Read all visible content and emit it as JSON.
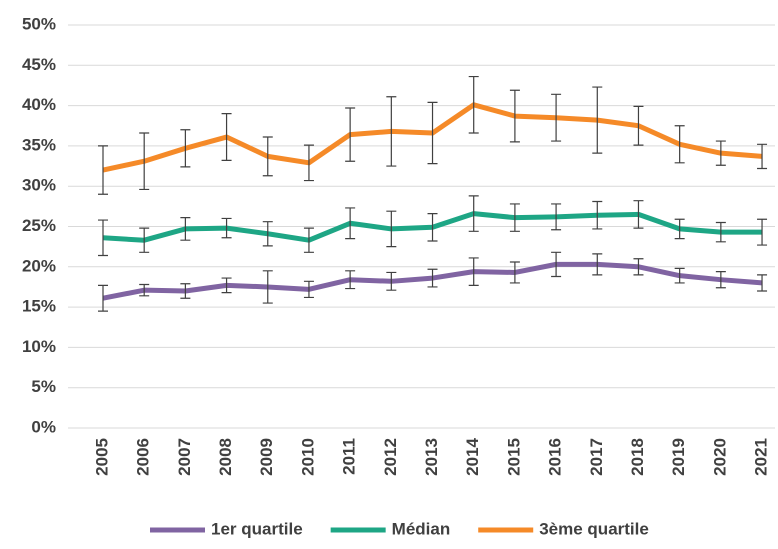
{
  "chart_data": {
    "type": "line",
    "categories": [
      "2005",
      "2006",
      "2007",
      "2008",
      "2009",
      "2010",
      "2011",
      "2012",
      "2013",
      "2014",
      "2015",
      "2016",
      "2017",
      "2018",
      "2019",
      "2020",
      "2021"
    ],
    "series": [
      {
        "name": "1er quartile",
        "color": "#8064a2",
        "values": [
          16.1,
          17.1,
          17.0,
          17.7,
          17.5,
          17.2,
          18.4,
          18.2,
          18.6,
          19.4,
          19.3,
          20.3,
          20.3,
          20.0,
          18.9,
          18.4,
          18.0
        ],
        "errors": [
          1.6,
          0.7,
          0.9,
          0.9,
          2.0,
          1.0,
          1.1,
          1.1,
          1.1,
          1.7,
          1.3,
          1.5,
          1.3,
          1.0,
          0.9,
          1.0,
          1.0
        ]
      },
      {
        "name": "Médian",
        "color": "#1ea685",
        "values": [
          23.6,
          23.3,
          24.7,
          24.8,
          24.1,
          23.3,
          25.4,
          24.7,
          24.9,
          26.6,
          26.1,
          26.2,
          26.4,
          26.5,
          24.7,
          24.3,
          24.3
        ],
        "errors": [
          2.2,
          1.5,
          1.4,
          1.2,
          1.5,
          1.5,
          1.9,
          2.2,
          1.7,
          2.2,
          1.7,
          1.6,
          1.7,
          1.7,
          1.2,
          1.2,
          1.6
        ]
      },
      {
        "name": "3ème quartile",
        "color": "#f58a28",
        "values": [
          32.0,
          33.1,
          34.7,
          36.1,
          33.7,
          32.9,
          36.4,
          36.8,
          36.6,
          40.1,
          38.7,
          38.5,
          38.2,
          37.5,
          35.2,
          34.1,
          33.7
        ],
        "errors": [
          3.0,
          3.5,
          2.3,
          2.9,
          2.4,
          2.2,
          3.3,
          4.3,
          3.8,
          3.5,
          3.2,
          2.9,
          4.1,
          2.4,
          2.3,
          1.5,
          1.5
        ]
      }
    ],
    "ylim": [
      0,
      50
    ],
    "yticks": [
      {
        "value": 0,
        "label": "0%"
      },
      {
        "value": 5,
        "label": "5%"
      },
      {
        "value": 10,
        "label": "10%"
      },
      {
        "value": 15,
        "label": "15%"
      },
      {
        "value": 20,
        "label": "20%"
      },
      {
        "value": 25,
        "label": "25%"
      },
      {
        "value": 30,
        "label": "30%"
      },
      {
        "value": 35,
        "label": "35%"
      },
      {
        "value": 40,
        "label": "40%"
      },
      {
        "value": 45,
        "label": "45%"
      },
      {
        "value": 50,
        "label": "50%"
      }
    ],
    "grid": true,
    "legend": "bottom"
  }
}
